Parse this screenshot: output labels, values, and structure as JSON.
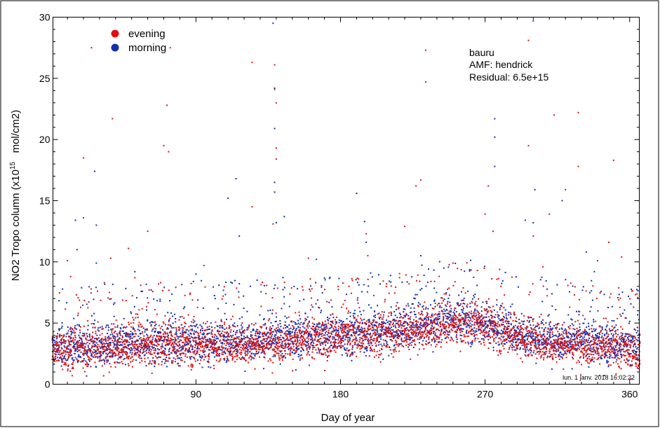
{
  "colors": {
    "evening": "#e01010",
    "morning": "#1030b0",
    "frame": "#000000",
    "background": "#ffffff"
  },
  "annotation": {
    "site": "bauru",
    "amf": "AMF: hendrick",
    "residual": "Residual: 6.5e+15"
  },
  "timestamp": "lun. 1 janv. 2018 16:02:22",
  "chart_data": {
    "type": "scatter",
    "xlabel": "Day of year",
    "ylabel": {
      "prefix": "NO2 Tropo column (x10",
      "exponent": "15",
      "suffix": "   mol/cm2)"
    },
    "xlim": [
      1,
      366
    ],
    "ylim": [
      0,
      30
    ],
    "xticks": [
      90,
      180,
      270,
      360
    ],
    "yticks": [
      0,
      5,
      10,
      15,
      20,
      25,
      30
    ],
    "legend": {
      "position": "top-left",
      "entries": [
        "evening",
        "morning"
      ]
    },
    "series": [
      {
        "name": "evening",
        "color": "#e01010",
        "baseline": [
          [
            1,
            2.9
          ],
          [
            30,
            3.0
          ],
          [
            60,
            3.2
          ],
          [
            90,
            3.3
          ],
          [
            120,
            3.4
          ],
          [
            150,
            3.5
          ],
          [
            180,
            3.9
          ],
          [
            210,
            4.1
          ],
          [
            240,
            4.7
          ],
          [
            255,
            5.0
          ],
          [
            270,
            4.8
          ],
          [
            300,
            3.6
          ],
          [
            330,
            3.3
          ],
          [
            360,
            2.8
          ],
          [
            366,
            2.7
          ]
        ],
        "values": [
          [
            10,
            10.1
          ],
          [
            12,
            8.8
          ],
          [
            20,
            13.6
          ],
          [
            20,
            18.5
          ],
          [
            25,
            27.5
          ],
          [
            33,
            8.3
          ],
          [
            37,
            10.3
          ],
          [
            38,
            21.7
          ],
          [
            48,
            11.1
          ],
          [
            52,
            8.7
          ],
          [
            60,
            12.5
          ],
          [
            68,
            8.3
          ],
          [
            70,
            19.5
          ],
          [
            72,
            22.8
          ],
          [
            73,
            19.0
          ],
          [
            74,
            27.5
          ],
          [
            95,
            9.7
          ],
          [
            125,
            14.5
          ],
          [
            125,
            26.3
          ],
          [
            138,
            13.1
          ],
          [
            139,
            26.1
          ],
          [
            139,
            24.1
          ],
          [
            140,
            23.0
          ],
          [
            140,
            19.3
          ],
          [
            140,
            18.4
          ],
          [
            160,
            10.3
          ],
          [
            196,
            12.3
          ],
          [
            197,
            10.5
          ],
          [
            220,
            12.9
          ],
          [
            227,
            16.2
          ],
          [
            230,
            16.7
          ],
          [
            233,
            27.3
          ],
          [
            233,
            24.7
          ],
          [
            250,
            9.9
          ],
          [
            270,
            13.9
          ],
          [
            272,
            16.2
          ],
          [
            275,
            12.5
          ],
          [
            297,
            19.5
          ],
          [
            297,
            28.1
          ],
          [
            300,
            12.1
          ],
          [
            306,
            9.6
          ],
          [
            310,
            13.9
          ],
          [
            313,
            22.0
          ],
          [
            320,
            15.9
          ],
          [
            328,
            22.2
          ],
          [
            328,
            17.8
          ],
          [
            340,
            10.1
          ],
          [
            347,
            11.6
          ],
          [
            350,
            18.3
          ],
          [
            355,
            10.4
          ]
        ]
      },
      {
        "name": "morning",
        "color": "#1030b0",
        "baseline": [
          [
            1,
            3.0
          ],
          [
            30,
            3.2
          ],
          [
            60,
            3.4
          ],
          [
            90,
            3.5
          ],
          [
            120,
            3.6
          ],
          [
            150,
            3.8
          ],
          [
            180,
            4.1
          ],
          [
            210,
            4.4
          ],
          [
            240,
            5.0
          ],
          [
            255,
            5.3
          ],
          [
            270,
            5.0
          ],
          [
            300,
            3.9
          ],
          [
            330,
            3.6
          ],
          [
            360,
            3.1
          ],
          [
            366,
            3.0
          ]
        ],
        "values": [
          [
            15,
            13.4
          ],
          [
            16,
            11.0
          ],
          [
            27,
            17.4
          ],
          [
            28,
            13.0
          ],
          [
            28,
            9.9
          ],
          [
            52,
            9.2
          ],
          [
            90,
            9.0
          ],
          [
            110,
            15.2
          ],
          [
            115,
            16.8
          ],
          [
            117,
            12.1
          ],
          [
            138,
            29.5
          ],
          [
            139,
            24.2
          ],
          [
            139,
            20.9
          ],
          [
            139,
            16.5
          ],
          [
            139,
            15.7
          ],
          [
            140,
            13.2
          ],
          [
            145,
            13.7
          ],
          [
            165,
            10.2
          ],
          [
            190,
            15.6
          ],
          [
            195,
            13.3
          ],
          [
            196,
            11.6
          ],
          [
            230,
            10.5
          ],
          [
            232,
            8.9
          ],
          [
            276,
            21.7
          ],
          [
            276,
            20.2
          ],
          [
            276,
            17.8
          ],
          [
            295,
            13.4
          ],
          [
            300,
            29.7
          ],
          [
            301,
            15.9
          ],
          [
            300,
            13.2
          ],
          [
            318,
            15.0
          ],
          [
            333,
            10.8
          ],
          [
            338,
            9.2
          ]
        ]
      }
    ]
  }
}
